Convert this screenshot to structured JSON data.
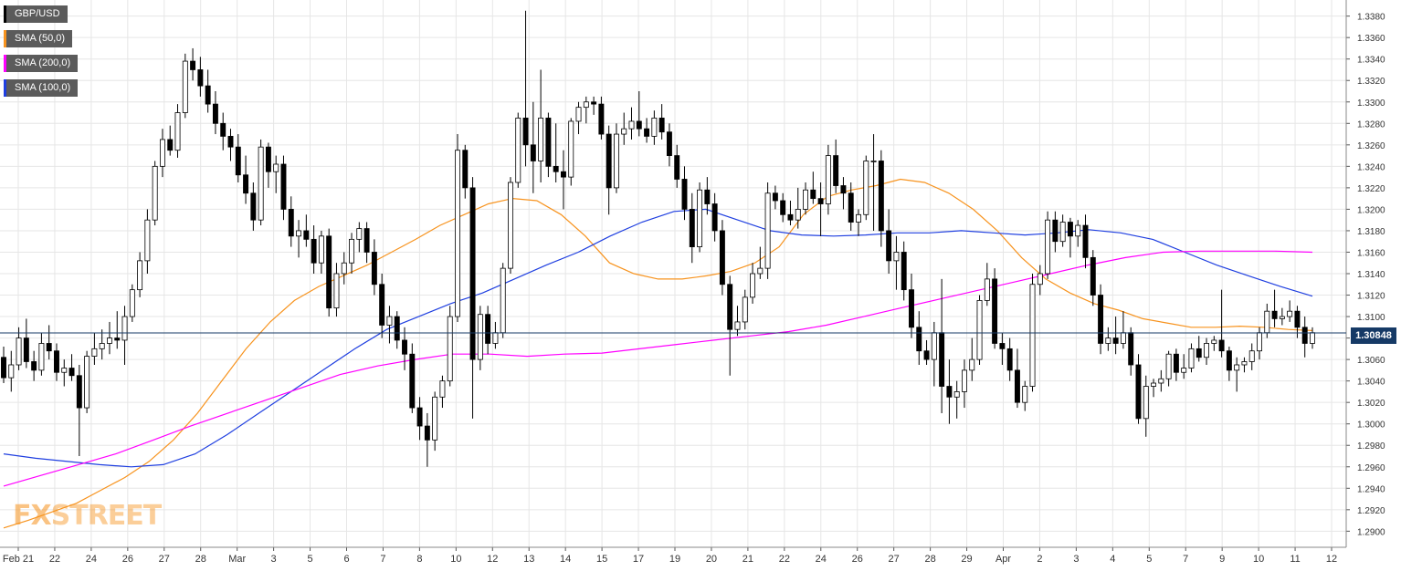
{
  "legend": {
    "symbol": "GBP/USD",
    "sma50": "SMA (50,0)",
    "sma200": "SMA (200,0)",
    "sma100": "SMA (100,0)"
  },
  "logo": {
    "part1": "FX",
    "part2": "STREET"
  },
  "last_price_label": "1.30848",
  "colors": {
    "background": "#ffffff",
    "grid": "#e6e6e6",
    "bull_candle": "#ffffff",
    "bear_candle": "#000000",
    "sma50": "#f7931e",
    "sma200": "#ff00ff",
    "sma100": "#1f3fe0",
    "price_line": "#163a66",
    "logo_fx": "#f7931e",
    "logo_street": "#f7931e"
  },
  "chart_data": {
    "type": "candlestick",
    "title": "",
    "ylim": [
      1.2885,
      1.3395
    ],
    "y_ticks": [
      "1.2900",
      "1.2920",
      "1.2940",
      "1.2960",
      "1.2980",
      "1.3000",
      "1.3020",
      "1.3040",
      "1.3060",
      "1.3080",
      "1.3100",
      "1.3120",
      "1.3140",
      "1.3160",
      "1.3180",
      "1.3200",
      "1.3220",
      "1.3240",
      "1.3260",
      "1.3280",
      "1.3300",
      "1.3320",
      "1.3340",
      "1.3360",
      "1.3380"
    ],
    "x_ticks": [
      "Feb 21",
      "22",
      "24",
      "26",
      "27",
      "28",
      "Mar",
      "3",
      "5",
      "6",
      "7",
      "8",
      "10",
      "12",
      "13",
      "14",
      "15",
      "17",
      "19",
      "20",
      "21",
      "22",
      "24",
      "26",
      "27",
      "28",
      "29",
      "Apr",
      "2",
      "3",
      "4",
      "5",
      "7",
      "9",
      "10",
      "11",
      "12"
    ],
    "last_price": 1.30848,
    "grid": true,
    "legend_position": "top-left",
    "candles": [
      [
        1.3062,
        1.3072,
        1.3038,
        1.3043
      ],
      [
        1.3043,
        1.3068,
        1.303,
        1.3055
      ],
      [
        1.3055,
        1.309,
        1.305,
        1.308
      ],
      [
        1.308,
        1.3098,
        1.3052,
        1.3058
      ],
      [
        1.3058,
        1.3068,
        1.304,
        1.305
      ],
      [
        1.305,
        1.3085,
        1.3045,
        1.3075
      ],
      [
        1.3075,
        1.3092,
        1.306,
        1.3068
      ],
      [
        1.3068,
        1.3075,
        1.304,
        1.3048
      ],
      [
        1.3048,
        1.306,
        1.3035,
        1.3052
      ],
      [
        1.3052,
        1.3065,
        1.304,
        1.3045
      ],
      [
        1.3045,
        1.3055,
        1.297,
        1.3015
      ],
      [
        1.3015,
        1.3068,
        1.301,
        1.3063
      ],
      [
        1.3063,
        1.3085,
        1.3055,
        1.307
      ],
      [
        1.307,
        1.3088,
        1.306,
        1.3075
      ],
      [
        1.3075,
        1.3095,
        1.3065,
        1.308
      ],
      [
        1.308,
        1.3105,
        1.307,
        1.3078
      ],
      [
        1.3078,
        1.311,
        1.3055,
        1.31
      ],
      [
        1.31,
        1.313,
        1.3095,
        1.3125
      ],
      [
        1.3125,
        1.316,
        1.3118,
        1.3152
      ],
      [
        1.3152,
        1.32,
        1.314,
        1.319
      ],
      [
        1.319,
        1.3245,
        1.3185,
        1.324
      ],
      [
        1.324,
        1.3275,
        1.323,
        1.3265
      ],
      [
        1.3265,
        1.3278,
        1.325,
        1.3255
      ],
      [
        1.3255,
        1.3298,
        1.3248,
        1.329
      ],
      [
        1.329,
        1.3345,
        1.3285,
        1.3338
      ],
      [
        1.3338,
        1.335,
        1.332,
        1.333
      ],
      [
        1.333,
        1.3342,
        1.3305,
        1.3315
      ],
      [
        1.3315,
        1.333,
        1.329,
        1.3298
      ],
      [
        1.3298,
        1.331,
        1.327,
        1.328
      ],
      [
        1.328,
        1.329,
        1.3255,
        1.3268
      ],
      [
        1.3268,
        1.3275,
        1.3245,
        1.3258
      ],
      [
        1.3258,
        1.327,
        1.3225,
        1.3232
      ],
      [
        1.3232,
        1.325,
        1.3205,
        1.3215
      ],
      [
        1.3215,
        1.3225,
        1.318,
        1.319
      ],
      [
        1.319,
        1.3265,
        1.3185,
        1.3258
      ],
      [
        1.3258,
        1.3262,
        1.322,
        1.3235
      ],
      [
        1.3235,
        1.325,
        1.3215,
        1.3242
      ],
      [
        1.3242,
        1.325,
        1.319,
        1.32
      ],
      [
        1.32,
        1.3212,
        1.3165,
        1.3175
      ],
      [
        1.3175,
        1.319,
        1.3155,
        1.318
      ],
      [
        1.318,
        1.3195,
        1.3165,
        1.3172
      ],
      [
        1.3172,
        1.3185,
        1.314,
        1.315
      ],
      [
        1.315,
        1.318,
        1.314,
        1.3175
      ],
      [
        1.3175,
        1.3182,
        1.31,
        1.3108
      ],
      [
        1.3108,
        1.315,
        1.31,
        1.314
      ],
      [
        1.314,
        1.316,
        1.313,
        1.315
      ],
      [
        1.315,
        1.3178,
        1.314,
        1.3172
      ],
      [
        1.3172,
        1.3188,
        1.316,
        1.3182
      ],
      [
        1.3182,
        1.3188,
        1.315,
        1.316
      ],
      [
        1.316,
        1.3172,
        1.312,
        1.313
      ],
      [
        1.313,
        1.314,
        1.308,
        1.3092
      ],
      [
        1.3092,
        1.311,
        1.3075,
        1.31
      ],
      [
        1.31,
        1.3105,
        1.307,
        1.3078
      ],
      [
        1.3078,
        1.309,
        1.305,
        1.3065
      ],
      [
        1.3065,
        1.3075,
        1.301,
        1.3015
      ],
      [
        1.3015,
        1.3025,
        1.2985,
        1.2998
      ],
      [
        1.2998,
        1.301,
        1.296,
        1.2985
      ],
      [
        1.2985,
        1.303,
        1.2975,
        1.3025
      ],
      [
        1.3025,
        1.3045,
        1.3015,
        1.304
      ],
      [
        1.304,
        1.311,
        1.3035,
        1.31
      ],
      [
        1.31,
        1.327,
        1.3095,
        1.3255
      ],
      [
        1.3255,
        1.326,
        1.321,
        1.322
      ],
      [
        1.322,
        1.323,
        1.3005,
        1.306
      ],
      [
        1.306,
        1.311,
        1.305,
        1.3102
      ],
      [
        1.3102,
        1.311,
        1.3065,
        1.3075
      ],
      [
        1.3075,
        1.3095,
        1.307,
        1.3085
      ],
      [
        1.3085,
        1.315,
        1.308,
        1.3145
      ],
      [
        1.3145,
        1.323,
        1.314,
        1.3225
      ],
      [
        1.3225,
        1.329,
        1.322,
        1.3285
      ],
      [
        1.3285,
        1.3385,
        1.324,
        1.326
      ],
      [
        1.326,
        1.33,
        1.3215,
        1.3245
      ],
      [
        1.3245,
        1.333,
        1.3225,
        1.3285
      ],
      [
        1.3285,
        1.329,
        1.323,
        1.324
      ],
      [
        1.324,
        1.328,
        1.3225,
        1.3235
      ],
      [
        1.3235,
        1.3255,
        1.32,
        1.323
      ],
      [
        1.323,
        1.3285,
        1.3222,
        1.3282
      ],
      [
        1.3282,
        1.33,
        1.327,
        1.3295
      ],
      [
        1.3295,
        1.3305,
        1.328,
        1.33
      ],
      [
        1.33,
        1.3305,
        1.3288,
        1.3298
      ],
      [
        1.3298,
        1.3305,
        1.3265,
        1.327
      ],
      [
        1.327,
        1.3278,
        1.3195,
        1.322
      ],
      [
        1.322,
        1.328,
        1.3215,
        1.327
      ],
      [
        1.327,
        1.329,
        1.326,
        1.3275
      ],
      [
        1.3275,
        1.3295,
        1.3265,
        1.3282
      ],
      [
        1.3282,
        1.331,
        1.3268,
        1.3275
      ],
      [
        1.3275,
        1.3285,
        1.3262,
        1.3268
      ],
      [
        1.3268,
        1.3292,
        1.326,
        1.3285
      ],
      [
        1.3285,
        1.3298,
        1.3265,
        1.3272
      ],
      [
        1.3272,
        1.328,
        1.324,
        1.325
      ],
      [
        1.325,
        1.326,
        1.322,
        1.3228
      ],
      [
        1.3228,
        1.324,
        1.319,
        1.32
      ],
      [
        1.32,
        1.3215,
        1.315,
        1.3165
      ],
      [
        1.3165,
        1.3225,
        1.316,
        1.3218
      ],
      [
        1.3218,
        1.323,
        1.3195,
        1.3205
      ],
      [
        1.3205,
        1.3215,
        1.317,
        1.318
      ],
      [
        1.318,
        1.319,
        1.312,
        1.313
      ],
      [
        1.313,
        1.3138,
        1.3045,
        1.3088
      ],
      [
        1.3088,
        1.311,
        1.3082,
        1.3095
      ],
      [
        1.3095,
        1.3125,
        1.3088,
        1.3118
      ],
      [
        1.3118,
        1.315,
        1.3112,
        1.314
      ],
      [
        1.314,
        1.3165,
        1.3135,
        1.3145
      ],
      [
        1.3145,
        1.3225,
        1.3135,
        1.3215
      ],
      [
        1.3215,
        1.3222,
        1.32,
        1.3208
      ],
      [
        1.3208,
        1.3215,
        1.3188,
        1.3195
      ],
      [
        1.3195,
        1.3208,
        1.3185,
        1.319
      ],
      [
        1.319,
        1.322,
        1.3182,
        1.32
      ],
      [
        1.32,
        1.3225,
        1.3195,
        1.3218
      ],
      [
        1.3218,
        1.3235,
        1.3205,
        1.321
      ],
      [
        1.321,
        1.3225,
        1.3175,
        1.3205
      ],
      [
        1.3205,
        1.326,
        1.3195,
        1.325
      ],
      [
        1.325,
        1.3265,
        1.3215,
        1.3222
      ],
      [
        1.3222,
        1.323,
        1.32,
        1.3215
      ],
      [
        1.3215,
        1.3225,
        1.318,
        1.3188
      ],
      [
        1.3188,
        1.32,
        1.3175,
        1.3195
      ],
      [
        1.3195,
        1.325,
        1.319,
        1.3245
      ],
      [
        1.3245,
        1.327,
        1.318,
        1.3245
      ],
      [
        1.3245,
        1.3255,
        1.3165,
        1.318
      ],
      [
        1.318,
        1.32,
        1.314,
        1.3152
      ],
      [
        1.3152,
        1.3175,
        1.3125,
        1.316
      ],
      [
        1.316,
        1.317,
        1.3115,
        1.3125
      ],
      [
        1.3125,
        1.314,
        1.308,
        1.309
      ],
      [
        1.309,
        1.3105,
        1.3055,
        1.3068
      ],
      [
        1.3068,
        1.3078,
        1.3055,
        1.306
      ],
      [
        1.306,
        1.3095,
        1.3035,
        1.3085
      ],
      [
        1.3085,
        1.3135,
        1.301,
        1.3035
      ],
      [
        1.3035,
        1.306,
        1.3,
        1.3025
      ],
      [
        1.3025,
        1.304,
        1.3005,
        1.303
      ],
      [
        1.303,
        1.306,
        1.3015,
        1.305
      ],
      [
        1.305,
        1.308,
        1.304,
        1.306
      ],
      [
        1.306,
        1.312,
        1.3055,
        1.3115
      ],
      [
        1.3115,
        1.315,
        1.311,
        1.3135
      ],
      [
        1.3135,
        1.3145,
        1.307,
        1.3075
      ],
      [
        1.3075,
        1.3085,
        1.3055,
        1.307
      ],
      [
        1.307,
        1.308,
        1.304,
        1.305
      ],
      [
        1.305,
        1.307,
        1.3015,
        1.302
      ],
      [
        1.302,
        1.304,
        1.3012,
        1.3035
      ],
      [
        1.3035,
        1.314,
        1.303,
        1.313
      ],
      [
        1.313,
        1.3148,
        1.312,
        1.314
      ],
      [
        1.314,
        1.3198,
        1.3135,
        1.319
      ],
      [
        1.319,
        1.3198,
        1.316,
        1.317
      ],
      [
        1.317,
        1.3195,
        1.3165,
        1.3188
      ],
      [
        1.3188,
        1.3192,
        1.3155,
        1.3175
      ],
      [
        1.3175,
        1.319,
        1.3165,
        1.3185
      ],
      [
        1.3185,
        1.3195,
        1.3145,
        1.3155
      ],
      [
        1.3155,
        1.3162,
        1.311,
        1.312
      ],
      [
        1.312,
        1.313,
        1.3065,
        1.3075
      ],
      [
        1.3075,
        1.309,
        1.3068,
        1.308
      ],
      [
        1.308,
        1.31,
        1.3065,
        1.3075
      ],
      [
        1.3075,
        1.3105,
        1.307,
        1.3085
      ],
      [
        1.3085,
        1.309,
        1.3045,
        1.3055
      ],
      [
        1.3055,
        1.3065,
        1.3,
        1.3005
      ],
      [
        1.3005,
        1.3045,
        1.2988,
        1.3035
      ],
      [
        1.3035,
        1.3042,
        1.3025,
        1.3038
      ],
      [
        1.3038,
        1.305,
        1.303,
        1.3042
      ],
      [
        1.3042,
        1.3068,
        1.3035,
        1.3065
      ],
      [
        1.3065,
        1.307,
        1.304,
        1.3048
      ],
      [
        1.3048,
        1.3065,
        1.3042,
        1.3052
      ],
      [
        1.3052,
        1.3075,
        1.3048,
        1.307
      ],
      [
        1.307,
        1.3082,
        1.3058,
        1.3062
      ],
      [
        1.3062,
        1.308,
        1.3055,
        1.3075
      ],
      [
        1.3075,
        1.3082,
        1.3068,
        1.3078
      ],
      [
        1.3078,
        1.3125,
        1.3062,
        1.3068
      ],
      [
        1.3068,
        1.3072,
        1.304,
        1.305
      ],
      [
        1.305,
        1.3062,
        1.303,
        1.3055
      ],
      [
        1.3055,
        1.3062,
        1.3048,
        1.3058
      ],
      [
        1.3058,
        1.3075,
        1.305,
        1.3068
      ],
      [
        1.3068,
        1.309,
        1.306,
        1.3085
      ],
      [
        1.3085,
        1.3112,
        1.308,
        1.3105
      ],
      [
        1.3105,
        1.3125,
        1.309,
        1.3098
      ],
      [
        1.3098,
        1.3108,
        1.3092,
        1.31
      ],
      [
        1.31,
        1.3115,
        1.3095,
        1.3105
      ],
      [
        1.3105,
        1.311,
        1.308,
        1.309
      ],
      [
        1.309,
        1.31,
        1.3062,
        1.3075
      ],
      [
        1.3075,
        1.309,
        1.307,
        1.3085
      ]
    ],
    "series": [
      {
        "name": "SMA (50,0)",
        "values": [
          1.2903,
          1.291,
          1.2918,
          1.2926,
          1.2938,
          1.295,
          1.2965,
          1.2985,
          1.301,
          1.304,
          1.307,
          1.3095,
          1.3115,
          1.3128,
          1.3138,
          1.3148,
          1.316,
          1.3172,
          1.3185,
          1.3195,
          1.3205,
          1.321,
          1.3208,
          1.3195,
          1.3175,
          1.315,
          1.314,
          1.3135,
          1.3135,
          1.3138,
          1.3142,
          1.315,
          1.3165,
          1.3195,
          1.3212,
          1.3218,
          1.3222,
          1.3228,
          1.3225,
          1.3215,
          1.32,
          1.318,
          1.3155,
          1.3135,
          1.3122,
          1.3112,
          1.3106,
          1.3098,
          1.3094,
          1.309,
          1.309,
          1.3091,
          1.309,
          1.3088,
          1.3087
        ]
      },
      {
        "name": "SMA (100,0)",
        "values": [
          1.2972,
          1.2968,
          1.2965,
          1.2962,
          1.296,
          1.2962,
          1.2972,
          1.299,
          1.301,
          1.303,
          1.305,
          1.307,
          1.3088,
          1.31,
          1.3112,
          1.3122,
          1.3135,
          1.3148,
          1.316,
          1.3175,
          1.3188,
          1.3198,
          1.32,
          1.319,
          1.318,
          1.3176,
          1.3175,
          1.3176,
          1.3178,
          1.3178,
          1.318,
          1.3178,
          1.3176,
          1.3178,
          1.3181,
          1.3178,
          1.3172,
          1.316,
          1.3148,
          1.3138,
          1.3128,
          1.3119
        ]
      },
      {
        "name": "SMA (200,0)",
        "values": [
          1.2942,
          1.2952,
          1.2962,
          1.2972,
          1.2985,
          1.2998,
          1.301,
          1.3022,
          1.3034,
          1.3046,
          1.3054,
          1.306,
          1.3065,
          1.3065,
          1.3063,
          1.3065,
          1.3066,
          1.307,
          1.3074,
          1.3078,
          1.3082,
          1.3086,
          1.3092,
          1.31,
          1.3108,
          1.3116,
          1.3124,
          1.3132,
          1.314,
          1.3148,
          1.3155,
          1.316,
          1.3161,
          1.3161,
          1.3161,
          1.316
        ]
      }
    ]
  }
}
